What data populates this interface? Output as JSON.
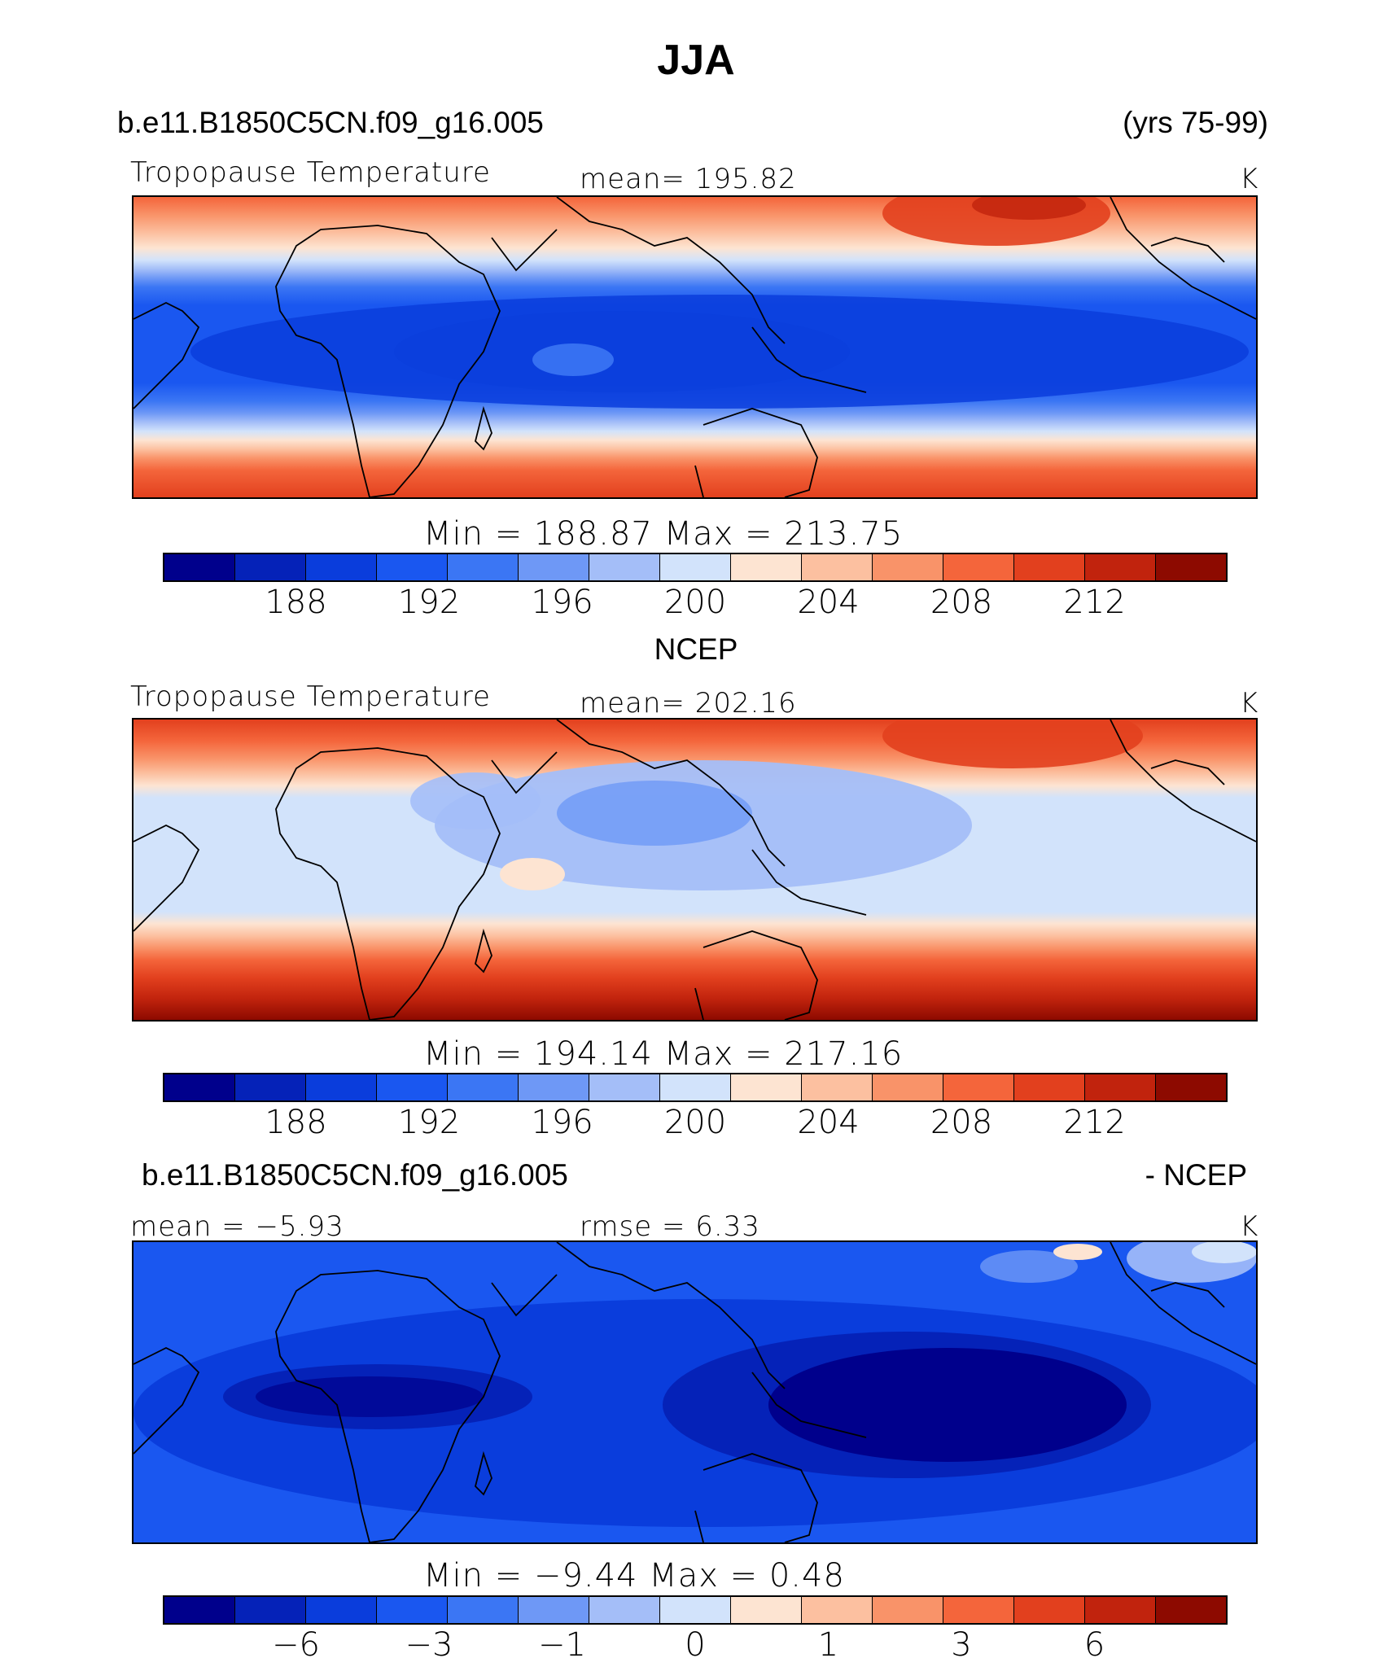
{
  "title": "JJA",
  "panel1": {
    "case": "b.e11.B1850C5CN.f09_g16.005",
    "years": "(yrs 75-99)",
    "variable": "Tropopause Temperature",
    "mean": "mean=  195.82",
    "units": "K",
    "minmax": "Min  =  188.87  Max  =  213.75"
  },
  "panel2": {
    "heading": "NCEP",
    "variable": "Tropopause Temperature",
    "mean": "mean=  202.16",
    "units": "K",
    "minmax": "Min  =  194.14  Max  =  217.16"
  },
  "panel3": {
    "case": "b.e11.B1850C5CN.f09_g16.005",
    "minus": "- NCEP",
    "mean": "mean =    −5.93",
    "rmse": "rmse =     6.33",
    "units": "K",
    "minmax": "Min  =   −9.44  Max  =    0.48"
  },
  "colorbar": {
    "colors": [
      "#00008c",
      "#0522b8",
      "#0a3ddc",
      "#1a57f0",
      "#3b76f4",
      "#6e98f6",
      "#a4bef8",
      "#d2e3fb",
      "#fde4d2",
      "#fcc0a0",
      "#f99369",
      "#f4653b",
      "#e2401e",
      "#c1230d",
      "#8d0a00"
    ],
    "labels_abs": [
      "188",
      "192",
      "196",
      "200",
      "204",
      "208",
      "212"
    ],
    "labels_diff": [
      "−6",
      "−3",
      "−1",
      "0",
      "1",
      "3",
      "6"
    ]
  }
}
